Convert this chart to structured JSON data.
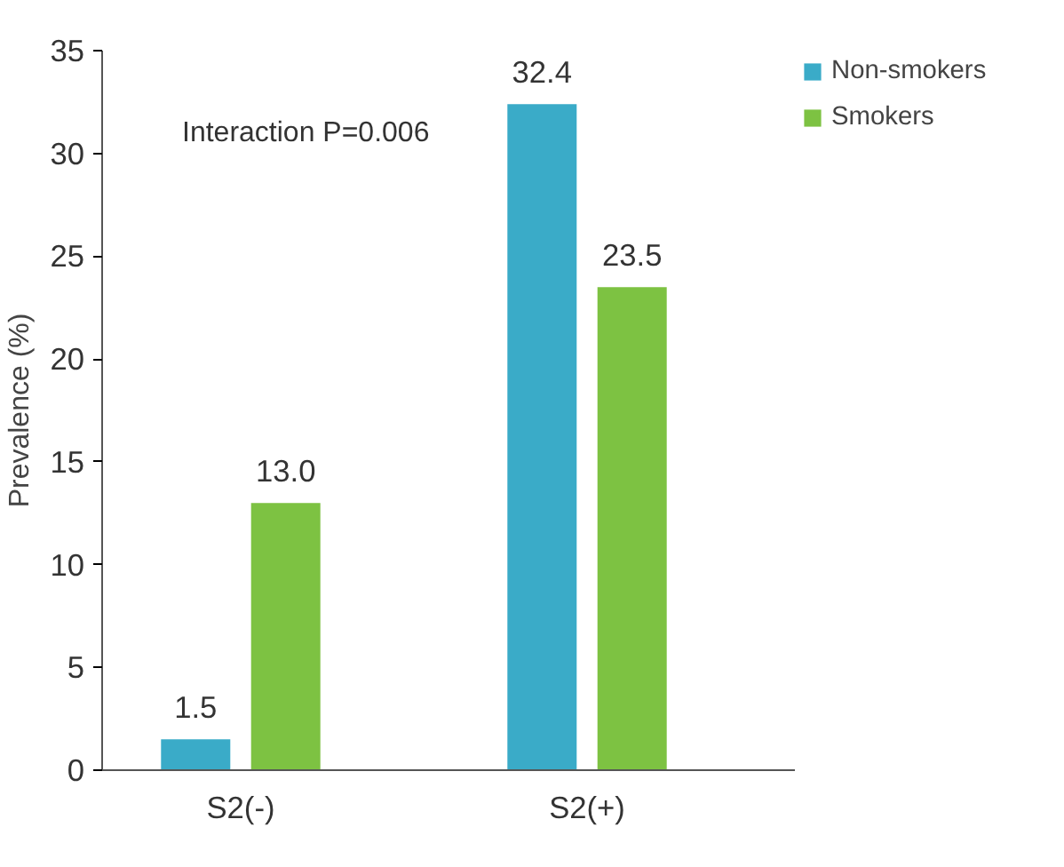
{
  "chart_data": {
    "type": "bar",
    "ylabel": "Prevalence (%)",
    "categories": [
      "S2(-)",
      "S2(+)"
    ],
    "series": [
      {
        "name": "Non-smokers",
        "color": "#3aabc8",
        "values": [
          1.5,
          32.4
        ],
        "value_labels": [
          "1.5",
          "32.4"
        ]
      },
      {
        "name": "Smokers",
        "color": "#7dc242",
        "values": [
          13.0,
          23.5
        ],
        "value_labels": [
          "13.0",
          "23.5"
        ]
      }
    ],
    "ylim": [
      0,
      35
    ],
    "yticks": [
      0,
      5,
      10,
      15,
      20,
      25,
      30,
      35
    ],
    "legend": "top right",
    "annotations": [
      "Interaction P=0.006"
    ]
  }
}
